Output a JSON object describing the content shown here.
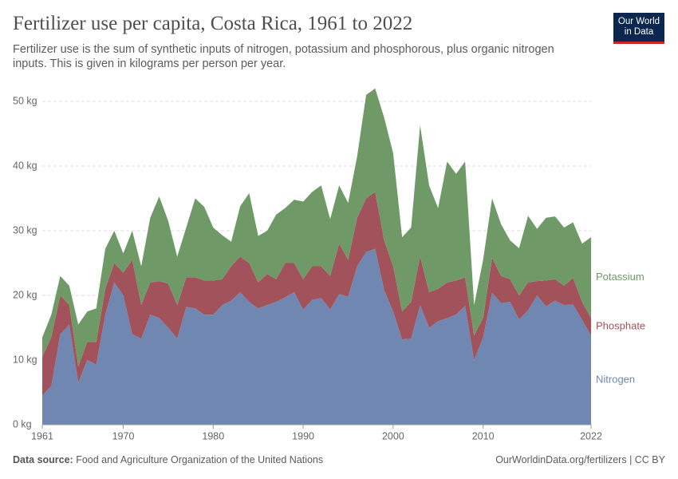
{
  "chart_data": {
    "type": "stacked_area",
    "title": "Fertilizer use per capita, Costa Rica, 1961 to 2022",
    "subtitle": "Fertilizer use is the sum of synthetic inputs of nitrogen, potassium and phosphorous, plus organic nitrogen inputs. This is given in kilograms per person per year.",
    "logo": [
      "Our World",
      "in Data"
    ],
    "source_label": "Data source:",
    "source": "Food and Agriculture Organization of the United Nations",
    "footer_right": "OurWorldinData.org/fertilizers | CC BY",
    "x": [
      1961,
      1962,
      1963,
      1964,
      1965,
      1966,
      1967,
      1968,
      1969,
      1970,
      1971,
      1972,
      1973,
      1974,
      1975,
      1976,
      1977,
      1978,
      1979,
      1980,
      1981,
      1982,
      1983,
      1984,
      1985,
      1986,
      1987,
      1988,
      1989,
      1990,
      1991,
      1992,
      1993,
      1994,
      1995,
      1996,
      1997,
      1998,
      1999,
      2000,
      2001,
      2002,
      2003,
      2004,
      2005,
      2006,
      2007,
      2008,
      2009,
      2010,
      2011,
      2012,
      2013,
      2014,
      2015,
      2016,
      2017,
      2018,
      2019,
      2020,
      2021,
      2022
    ],
    "xlim": [
      1961,
      2022
    ],
    "xticks": [
      1961,
      1970,
      1980,
      1990,
      2000,
      2010,
      2022
    ],
    "ylim": [
      0,
      50
    ],
    "yticks": [
      {
        "value": 0,
        "label": "0 kg"
      },
      {
        "value": 10,
        "label": "10 kg"
      },
      {
        "value": 20,
        "label": "20 kg"
      },
      {
        "value": 30,
        "label": "30 kg"
      },
      {
        "value": 40,
        "label": "40 kg"
      },
      {
        "value": 50,
        "label": "50 kg"
      }
    ],
    "grid": true,
    "series": [
      {
        "name": "Nitrogen",
        "color": "#7088b1",
        "values": [
          4.5,
          6,
          14,
          15.5,
          6.5,
          10,
          9.3,
          17,
          22,
          20,
          14,
          13.3,
          17,
          16.5,
          15,
          13.3,
          18.2,
          18,
          17,
          17,
          18.5,
          19.2,
          20.5,
          19,
          18,
          18.5,
          19,
          19.7,
          20.5,
          17.8,
          19.3,
          19.6,
          17.8,
          20.2,
          19.8,
          24.5,
          26.7,
          27.2,
          20.8,
          17.5,
          13.2,
          13.3,
          18.5,
          15,
          16,
          16.5,
          17,
          18.4,
          10,
          13.5,
          20.4,
          18.8,
          19,
          16.3,
          17.7,
          20,
          18.3,
          19.2,
          18.5,
          18.6,
          16.2,
          13.8
        ]
      },
      {
        "name": "Phosphate",
        "color": "#a2525b",
        "values": [
          6,
          7.5,
          6,
          3,
          2.5,
          2.8,
          3.5,
          4,
          3,
          3.5,
          11.5,
          5.2,
          5,
          5.7,
          6.8,
          5.2,
          4.6,
          4.8,
          5.3,
          5.3,
          4,
          5.3,
          5.5,
          6,
          4,
          4.8,
          3.5,
          5.3,
          4.5,
          4.7,
          5.2,
          4.9,
          5.2,
          7.8,
          5.7,
          7.5,
          8.3,
          8.8,
          7.7,
          7,
          4.3,
          5.7,
          7.5,
          5.5,
          5,
          5.5,
          5.3,
          4.4,
          3.8,
          3,
          5.4,
          4.2,
          3.5,
          3.7,
          4.3,
          2.2,
          4,
          3.3,
          3,
          4.1,
          2.8,
          2.7
        ]
      },
      {
        "name": "Potassium",
        "color": "#6f9a68",
        "values": [
          3,
          3.5,
          3,
          3,
          6.5,
          4.7,
          5.2,
          6.2,
          5,
          3,
          4.5,
          6,
          10,
          13.1,
          9.7,
          7.5,
          7.7,
          12.2,
          11.4,
          8.2,
          6.8,
          3.8,
          7.8,
          10.8,
          7.2,
          6.7,
          10,
          8.5,
          9.8,
          12,
          11.5,
          12.5,
          8.8,
          9,
          8.8,
          9.5,
          16,
          16,
          19,
          17.5,
          11.5,
          11.5,
          20.3,
          16.5,
          12.5,
          18.7,
          16.5,
          17.9,
          4.7,
          9,
          9.2,
          8,
          6,
          7.3,
          10.3,
          8.1,
          9.7,
          9.7,
          9,
          8.6,
          9,
          12.5
        ]
      }
    ]
  }
}
